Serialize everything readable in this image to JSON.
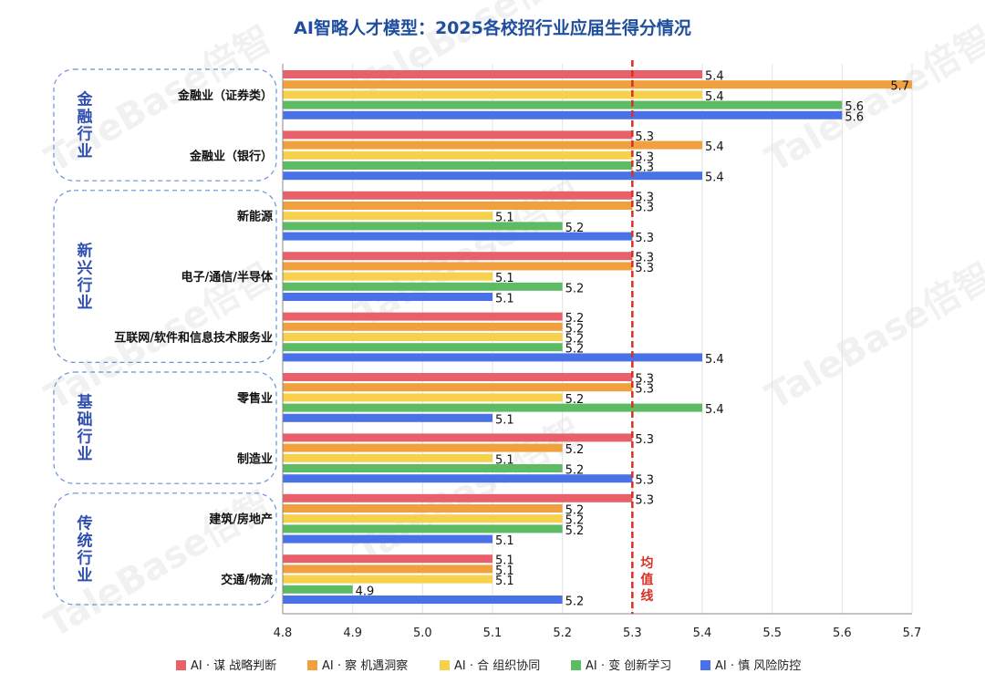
{
  "chart_data": {
    "type": "bar",
    "orientation": "horizontal",
    "title": "AI智略人才模型：2025各校招行业应届生得分情况",
    "xlim": [
      4.8,
      5.7
    ],
    "xticks": [
      "4.8",
      "4.9",
      "5.0",
      "5.1",
      "5.2",
      "5.3",
      "5.4",
      "5.5",
      "5.6",
      "5.7"
    ],
    "grid": "vertical",
    "legend_position": "bottom",
    "mean_line": {
      "value": 5.3,
      "label": "均值线",
      "color": "#d93025"
    },
    "groups": [
      {
        "name": "金融行业",
        "categories": [
          "金融业（证券类）",
          "金融业（银行）"
        ]
      },
      {
        "name": "新兴行业",
        "categories": [
          "新能源",
          "电子/通信/半导体",
          "互联网/软件和信息技术服务业"
        ]
      },
      {
        "name": "基础行业",
        "categories": [
          "零售业",
          "制造业"
        ]
      },
      {
        "name": "传统行业",
        "categories": [
          "建筑/房地产",
          "交通/物流"
        ]
      }
    ],
    "categories": [
      "金融业（证券类）",
      "金融业（银行）",
      "新能源",
      "电子/通信/半导体",
      "互联网/软件和信息技术服务业",
      "零售业",
      "制造业",
      "建筑/房地产",
      "交通/物流"
    ],
    "series": [
      {
        "name": "AI · 谋  战略判断",
        "color": "#e8616a",
        "values": [
          5.4,
          5.3,
          5.3,
          5.3,
          5.2,
          5.3,
          5.3,
          5.3,
          5.1
        ]
      },
      {
        "name": "AI · 察  机遇洞察",
        "color": "#f0a03c",
        "values": [
          5.7,
          5.4,
          5.3,
          5.3,
          5.2,
          5.3,
          5.2,
          5.2,
          5.1
        ]
      },
      {
        "name": "AI · 合  组织协同",
        "color": "#f7d14c",
        "values": [
          5.4,
          5.3,
          5.1,
          5.1,
          5.2,
          5.2,
          5.1,
          5.2,
          5.1
        ]
      },
      {
        "name": "AI · 变  创新学习",
        "color": "#5dbb63",
        "values": [
          5.6,
          5.3,
          5.2,
          5.2,
          5.2,
          5.4,
          5.2,
          5.2,
          4.9
        ]
      },
      {
        "name": "AI · 慎  风险防控",
        "color": "#4a72e8",
        "values": [
          5.6,
          5.4,
          5.3,
          5.1,
          5.4,
          5.1,
          5.3,
          5.1,
          5.2
        ]
      }
    ]
  },
  "watermarks": [
    "TaleBase倍智",
    "TaleBase倍智",
    "TaleBase倍智",
    "TaleBase倍智",
    "TaleBase倍智",
    "TaleBase倍智",
    "TaleBase倍智",
    "TaleBase倍智"
  ]
}
